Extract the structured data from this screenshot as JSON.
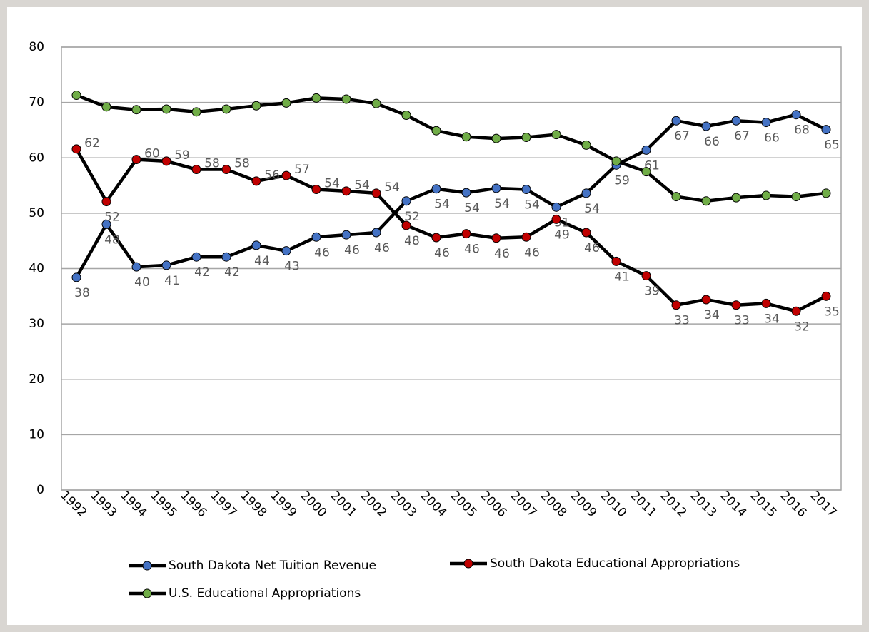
{
  "chart_data": {
    "type": "line",
    "categories": [
      "1992",
      "1993",
      "1994",
      "1995",
      "1996",
      "1997",
      "1998",
      "1999",
      "2000",
      "2001",
      "2002",
      "2003",
      "2004",
      "2005",
      "2006",
      "2007",
      "2008",
      "2009",
      "2010",
      "2011",
      "2012",
      "2013",
      "2014",
      "2015",
      "2016",
      "2017"
    ],
    "series": [
      {
        "name": "South Dakota Net Tuition Revenue",
        "color": "#4472c4",
        "values": [
          38.4,
          48,
          40.3,
          40.6,
          42.1,
          42.1,
          44.2,
          43.2,
          45.7,
          46.1,
          46.5,
          52.2,
          54.4,
          53.7,
          54.5,
          54.3,
          51.1,
          53.6,
          58.7,
          61.4,
          66.7,
          65.7,
          66.7,
          66.4,
          67.8,
          65.1
        ],
        "value_labels": [
          "38",
          "48",
          "40",
          "41",
          "42",
          "42",
          "44",
          "43",
          "46",
          "46",
          "46",
          "52",
          "54",
          "54",
          "54",
          "54",
          "51",
          "54",
          "59",
          "61",
          "67",
          "66",
          "67",
          "66",
          "68",
          "65"
        ]
      },
      {
        "name": "South Dakota Educational Appropriations",
        "color": "#c00000",
        "values": [
          61.6,
          52.1,
          59.7,
          59.4,
          57.9,
          57.9,
          55.8,
          56.8,
          54.3,
          54.0,
          53.6,
          47.8,
          45.6,
          46.3,
          45.5,
          45.7,
          48.9,
          46.5,
          41.3,
          38.7,
          33.4,
          34.4,
          33.4,
          33.7,
          32.3,
          35.0
        ],
        "value_labels": [
          "62",
          "52",
          "60",
          "59",
          "58",
          "58",
          "56",
          "57",
          "54",
          "54",
          "54",
          "48",
          "46",
          "46",
          "46",
          "46",
          "49",
          "46",
          "41",
          "39",
          "33",
          "34",
          "33",
          "34",
          "32",
          "35"
        ]
      },
      {
        "name": "U.S. Educational Appropriations",
        "color": "#70ad47",
        "values": [
          71.3,
          69.2,
          68.7,
          68.8,
          68.3,
          68.8,
          69.4,
          69.9,
          70.8,
          70.6,
          69.8,
          67.7,
          64.9,
          63.8,
          63.5,
          63.7,
          64.2,
          62.3,
          59.4,
          57.5,
          53.0,
          52.2,
          52.8,
          53.2,
          53.0,
          53.6
        ]
      }
    ],
    "ylim": [
      0,
      80
    ],
    "yticks": [
      0,
      10,
      20,
      30,
      40,
      50,
      60,
      70,
      80
    ],
    "grid": true,
    "legend": "bottom"
  }
}
